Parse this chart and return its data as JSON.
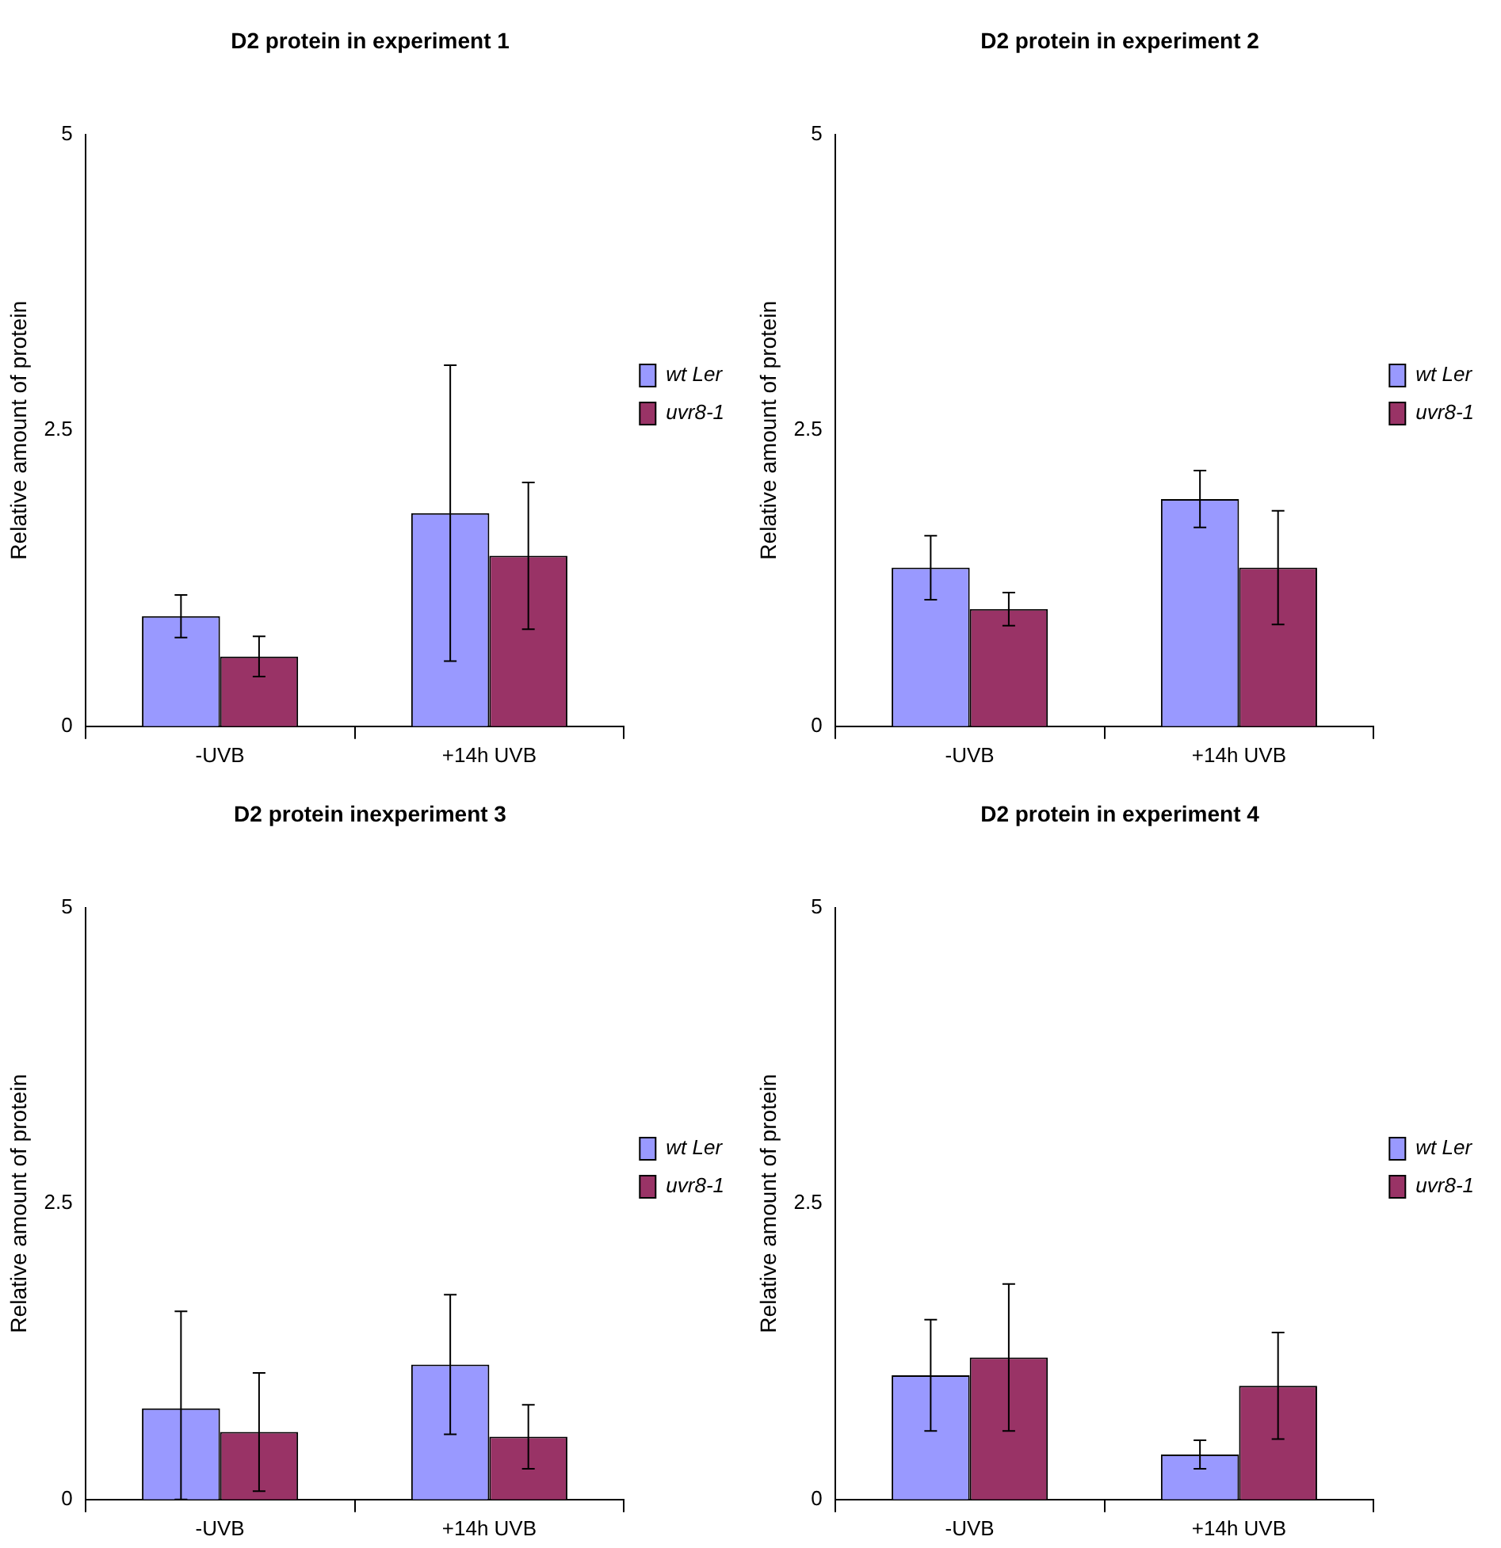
{
  "chart_data": [
    {
      "type": "bar",
      "title": "D2 protein in experiment 1",
      "ylabel": "Relative amount of protein",
      "categories": [
        "-UVB",
        "+14h UVB"
      ],
      "ylim": [
        0,
        5
      ],
      "yticks": [
        0,
        2.5,
        5
      ],
      "legend": "right",
      "series": [
        {
          "name": "wt Ler",
          "color": "#9999ff",
          "values": [
            0.93,
            1.8
          ],
          "errors": [
            0.18,
            1.25
          ]
        },
        {
          "name": "uvr8-1",
          "color": "#993366",
          "values": [
            0.59,
            1.44
          ],
          "errors": [
            0.17,
            0.62
          ]
        }
      ]
    },
    {
      "type": "bar",
      "title": "D2 protein in experiment 2",
      "ylabel": "Relative amount of protein",
      "categories": [
        "-UVB",
        "+14h UVB"
      ],
      "ylim": [
        0,
        5
      ],
      "yticks": [
        0,
        2.5,
        5
      ],
      "legend": "right",
      "series": [
        {
          "name": "wt Ler",
          "color": "#9999ff",
          "values": [
            1.34,
            1.92
          ],
          "errors": [
            0.27,
            0.24
          ]
        },
        {
          "name": "uvr8-1",
          "color": "#993366",
          "values": [
            0.99,
            1.34
          ],
          "errors": [
            0.14,
            0.48
          ]
        }
      ]
    },
    {
      "type": "bar",
      "title": "D2 protein inexperiment 3",
      "ylabel": "Relative amount of protein",
      "categories": [
        "-UVB",
        "+14h UVB"
      ],
      "ylim": [
        0,
        5
      ],
      "yticks": [
        0,
        2.5,
        5
      ],
      "legend": "right",
      "series": [
        {
          "name": "wt Ler",
          "color": "#9999ff",
          "values": [
            0.77,
            1.14
          ],
          "errors": [
            [
              0,
              1.59
            ],
            0.59
          ]
        },
        {
          "name": "uvr8-1",
          "color": "#993366",
          "values": [
            0.57,
            0.53
          ],
          "errors": [
            0.5,
            0.27
          ]
        }
      ]
    },
    {
      "type": "bar",
      "title": "D2 protein in experiment 4",
      "ylabel": "Relative amount of protein",
      "categories": [
        "-UVB",
        "+14h UVB"
      ],
      "ylim": [
        0,
        5
      ],
      "yticks": [
        0,
        2.5,
        5
      ],
      "legend": "right",
      "series": [
        {
          "name": "wt Ler",
          "color": "#9999ff",
          "values": [
            1.05,
            0.38
          ],
          "errors": [
            0.47,
            0.12
          ]
        },
        {
          "name": "uvr8-1",
          "color": "#993366",
          "values": [
            1.2,
            0.96
          ],
          "errors": [
            0.62,
            0.45
          ]
        }
      ]
    }
  ]
}
